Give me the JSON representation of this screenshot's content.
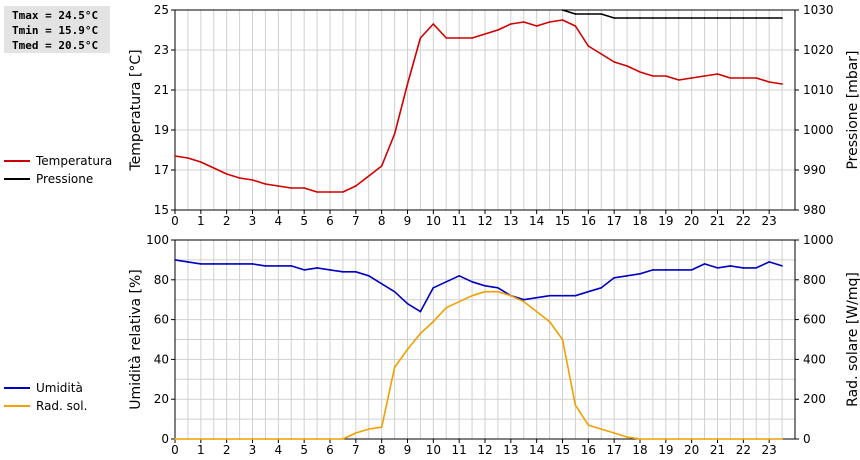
{
  "stats": {
    "tmax": "Tmax = 24.5°C",
    "tmin": "Tmin = 15.9°C",
    "tmed": "Tmed = 20.5°C"
  },
  "colors": {
    "temperature": "#d00000",
    "pressure": "#000000",
    "humidity": "#0000c0",
    "radiation": "#f0a000",
    "grid": "#d0d0d0",
    "grid_major": "#b8b8b8"
  },
  "legend_top": [
    {
      "label": "Temperatura",
      "color": "#d00000"
    },
    {
      "label": "Pressione",
      "color": "#000000"
    }
  ],
  "legend_bottom": [
    {
      "label": "Umidità",
      "color": "#0000c0"
    },
    {
      "label": "Rad. sol.",
      "color": "#f0a000"
    }
  ],
  "chart_data": [
    {
      "type": "line",
      "ylabel": "Temperatura [°C]",
      "y2label": "Pressione [mbar]",
      "xlim": [
        0,
        24
      ],
      "ylim": [
        15,
        25
      ],
      "y2lim": [
        980,
        1030
      ],
      "xticks": [
        "0",
        "1",
        "2",
        "3",
        "4",
        "5",
        "6",
        "7",
        "8",
        "9",
        "10",
        "11",
        "12",
        "13",
        "14",
        "15",
        "16",
        "17",
        "18",
        "19",
        "20",
        "21",
        "22",
        "23"
      ],
      "yticks": [
        "15",
        "17",
        "19",
        "21",
        "23",
        "25"
      ],
      "y2ticks": [
        "980",
        "990",
        "1000",
        "1010",
        "1020",
        "1030"
      ],
      "grid": true,
      "series": [
        {
          "name": "Temperatura",
          "axis": "left",
          "x": [
            0,
            0.5,
            1,
            1.5,
            2,
            2.5,
            3,
            3.5,
            4,
            4.5,
            5,
            5.5,
            6,
            6.5,
            7,
            7.5,
            8,
            8.5,
            9,
            9.5,
            10,
            10.5,
            11,
            11.5,
            12,
            12.5,
            13,
            13.5,
            14,
            14.5,
            15,
            15.5,
            16,
            16.5,
            17,
            17.5,
            18,
            18.5,
            19,
            19.5,
            20,
            20.5,
            21,
            21.5,
            22,
            22.5,
            23,
            23.5
          ],
          "values": [
            17.7,
            17.6,
            17.4,
            17.1,
            16.8,
            16.6,
            16.5,
            16.3,
            16.2,
            16.1,
            16.1,
            15.9,
            15.9,
            15.9,
            16.2,
            16.7,
            17.2,
            18.8,
            21.3,
            23.6,
            24.3,
            23.6,
            23.6,
            23.6,
            23.8,
            24.0,
            24.3,
            24.4,
            24.2,
            24.4,
            24.5,
            24.2,
            23.2,
            22.8,
            22.4,
            22.2,
            21.9,
            21.7,
            21.7,
            21.5,
            21.6,
            21.7,
            21.8,
            21.6,
            21.6,
            21.6,
            21.4,
            21.3
          ]
        },
        {
          "name": "Pressione",
          "axis": "right",
          "x": [
            15,
            15.5,
            16,
            16.5,
            17,
            17.5,
            18,
            18.5,
            19,
            19.5,
            20,
            20.5,
            21,
            21.5,
            22,
            22.5,
            23,
            23.5
          ],
          "values": [
            1030,
            1029,
            1029,
            1029,
            1028,
            1028,
            1028,
            1028,
            1028,
            1028,
            1028,
            1028,
            1028,
            1028,
            1028,
            1028,
            1028,
            1028
          ]
        }
      ]
    },
    {
      "type": "line",
      "ylabel": "Umidità relativa [%]",
      "y2label": "Rad. solare [W/mq]",
      "xlim": [
        0,
        24
      ],
      "ylim": [
        0,
        100
      ],
      "y2lim": [
        0,
        1000
      ],
      "xticks": [
        "0",
        "1",
        "2",
        "3",
        "4",
        "5",
        "6",
        "7",
        "8",
        "9",
        "10",
        "11",
        "12",
        "13",
        "14",
        "15",
        "16",
        "17",
        "18",
        "19",
        "20",
        "21",
        "22",
        "23"
      ],
      "yticks": [
        "0",
        "20",
        "40",
        "60",
        "80",
        "100"
      ],
      "y2ticks": [
        "0",
        "200",
        "400",
        "600",
        "800",
        "1000"
      ],
      "grid": true,
      "series": [
        {
          "name": "Umidità",
          "axis": "left",
          "x": [
            0,
            0.5,
            1,
            1.5,
            2,
            2.5,
            3,
            3.5,
            4,
            4.5,
            5,
            5.5,
            6,
            6.5,
            7,
            7.5,
            8,
            8.5,
            9,
            9.5,
            10,
            10.5,
            11,
            11.5,
            12,
            12.5,
            13,
            13.5,
            14,
            14.5,
            15,
            15.5,
            16,
            16.5,
            17,
            17.5,
            18,
            18.5,
            19,
            19.5,
            20,
            20.5,
            21,
            21.5,
            22,
            22.5,
            23,
            23.5
          ],
          "values": [
            90,
            89,
            88,
            88,
            88,
            88,
            88,
            87,
            87,
            87,
            85,
            86,
            85,
            84,
            84,
            82,
            78,
            74,
            68,
            64,
            76,
            79,
            82,
            79,
            77,
            76,
            72,
            70,
            71,
            72,
            72,
            72,
            74,
            76,
            81,
            82,
            83,
            85,
            85,
            85,
            85,
            88,
            86,
            87,
            86,
            86,
            89,
            87
          ]
        },
        {
          "name": "Rad. sol.",
          "axis": "right",
          "x": [
            0,
            0.5,
            1,
            1.5,
            2,
            2.5,
            3,
            3.5,
            4,
            4.5,
            5,
            5.5,
            6,
            6.5,
            7,
            7.5,
            8,
            8.5,
            9,
            9.5,
            10,
            10.5,
            11,
            11.5,
            12,
            12.5,
            13,
            13.5,
            14,
            14.5,
            15,
            15.5,
            16,
            16.5,
            17,
            17.5,
            18,
            18.5,
            19,
            19.5,
            20,
            20.5,
            21,
            21.5,
            22,
            22.5,
            23,
            23.5
          ],
          "values": [
            0,
            0,
            0,
            0,
            0,
            0,
            0,
            0,
            0,
            0,
            0,
            0,
            0,
            0,
            30,
            50,
            60,
            360,
            450,
            530,
            590,
            660,
            690,
            720,
            740,
            740,
            720,
            690,
            640,
            590,
            500,
            170,
            70,
            50,
            30,
            10,
            0,
            0,
            0,
            0,
            0,
            0,
            0,
            0,
            0,
            0,
            0,
            0
          ]
        }
      ]
    }
  ]
}
